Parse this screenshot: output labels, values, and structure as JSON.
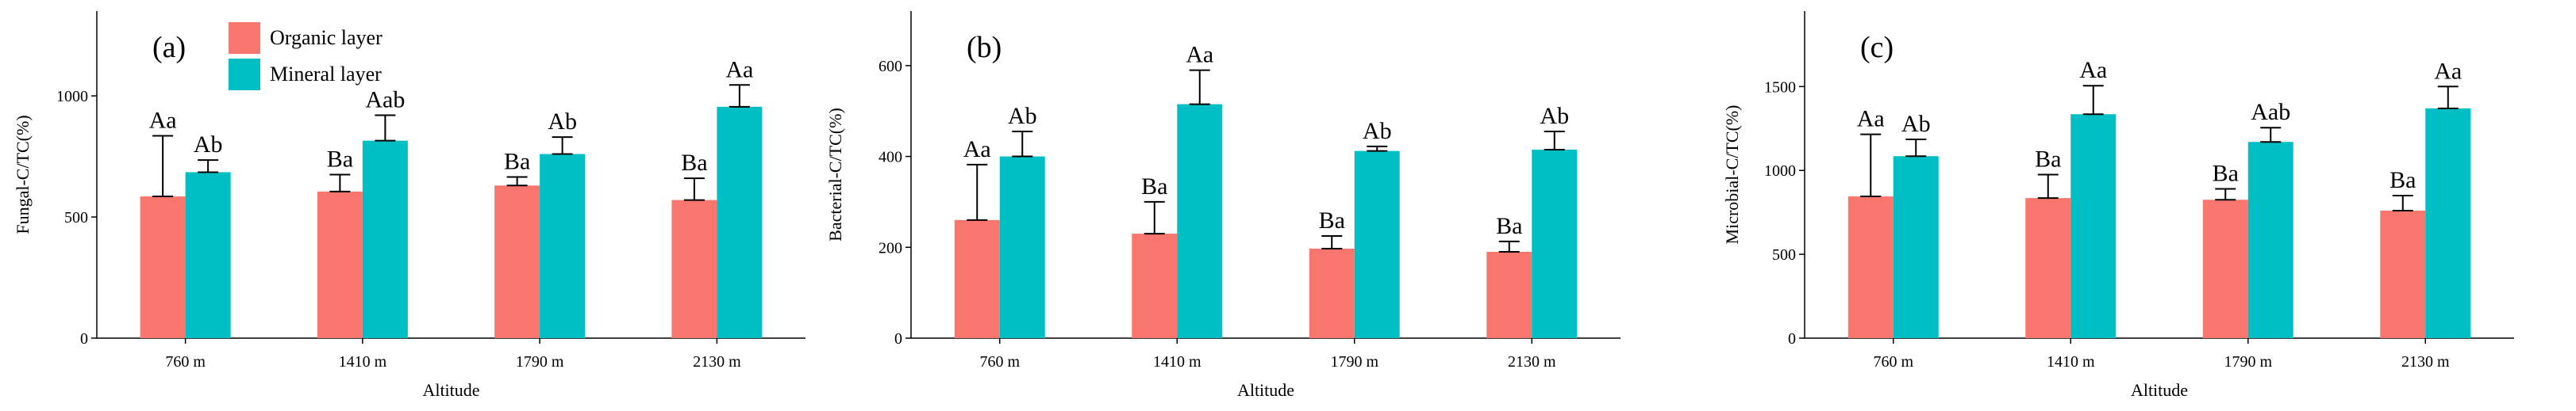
{
  "legend": {
    "items": [
      {
        "label": "Organic layer",
        "color": "#F8766D"
      },
      {
        "label": "Mineral layer",
        "color": "#00BFC4"
      }
    ]
  },
  "chart_data": [
    {
      "type": "bar",
      "panel_label": "(a)",
      "xlabel": "Altitude",
      "ylabel": "Fungal-C/TC(%)",
      "ylim": [
        0,
        1350
      ],
      "yticks": [
        0,
        500,
        1000
      ],
      "categories": [
        "760 m",
        "1410 m",
        "1790 m",
        "2130 m"
      ],
      "series": [
        {
          "name": "Organic layer",
          "color": "#F8766D",
          "values": [
            585,
            605,
            630,
            570
          ],
          "error_upper": [
            835,
            675,
            665,
            660
          ],
          "labels": [
            "Aa",
            "Ba",
            "Ba",
            "Ba"
          ]
        },
        {
          "name": "Mineral layer",
          "color": "#00BFC4",
          "values": [
            685,
            815,
            760,
            955
          ],
          "error_upper": [
            735,
            920,
            830,
            1045
          ],
          "labels": [
            "Ab",
            "Aab",
            "Ab",
            "Aa"
          ]
        }
      ]
    },
    {
      "type": "bar",
      "panel_label": "(b)",
      "xlabel": "Altitude",
      "ylabel": "Bacterial-C/TC(%)",
      "ylim": [
        0,
        720
      ],
      "yticks": [
        0,
        200,
        400,
        600
      ],
      "categories": [
        "760 m",
        "1410 m",
        "1790 m",
        "2130 m"
      ],
      "series": [
        {
          "name": "Organic layer",
          "color": "#F8766D",
          "values": [
            260,
            230,
            197,
            190
          ],
          "error_upper": [
            382,
            300,
            225,
            213
          ],
          "labels": [
            "Aa",
            "Ba",
            "Ba",
            "Ba"
          ]
        },
        {
          "name": "Mineral layer",
          "color": "#00BFC4",
          "values": [
            400,
            515,
            412,
            415
          ],
          "error_upper": [
            455,
            590,
            422,
            455
          ],
          "labels": [
            "Ab",
            "Aa",
            "Ab",
            "Ab"
          ]
        }
      ]
    },
    {
      "type": "bar",
      "panel_label": "(c)",
      "xlabel": "Altitude",
      "ylabel": "Microbial-C/TC(%)",
      "ylim": [
        0,
        1950
      ],
      "yticks": [
        0,
        500,
        1000,
        1500
      ],
      "categories": [
        "760 m",
        "1410 m",
        "1790 m",
        "2130 m"
      ],
      "series": [
        {
          "name": "Organic layer",
          "color": "#F8766D",
          "values": [
            845,
            835,
            825,
            760
          ],
          "error_upper": [
            1215,
            975,
            890,
            850
          ],
          "labels": [
            "Aa",
            "Ba",
            "Ba",
            "Ba"
          ]
        },
        {
          "name": "Mineral layer",
          "color": "#00BFC4",
          "values": [
            1085,
            1335,
            1170,
            1370
          ],
          "error_upper": [
            1185,
            1505,
            1255,
            1500
          ],
          "labels": [
            "Ab",
            "Aa",
            "Aab",
            "Aa"
          ]
        }
      ]
    }
  ]
}
